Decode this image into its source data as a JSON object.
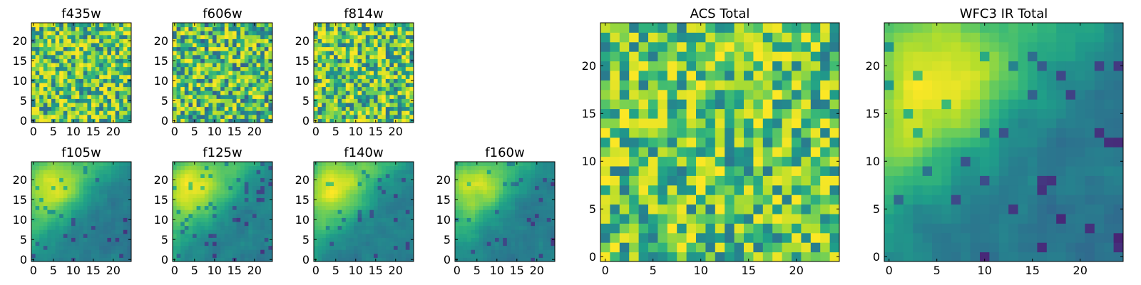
{
  "chart_data": [
    {
      "type": "heatmap",
      "title": "f435w",
      "x_ticks": [
        "0",
        "5",
        "10",
        "15",
        "20"
      ],
      "y_ticks": [
        "0",
        "5",
        "10",
        "15",
        "20"
      ],
      "xlim": [
        0,
        24
      ],
      "ylim": [
        0,
        24
      ],
      "grid_size": 25,
      "pattern": "noise",
      "seed": 11,
      "colormap": "viridis",
      "range": [
        0.35,
        1.0
      ]
    },
    {
      "type": "heatmap",
      "title": "f606w",
      "x_ticks": [
        "0",
        "5",
        "10",
        "15",
        "20"
      ],
      "y_ticks": [
        "0",
        "5",
        "10",
        "15",
        "20"
      ],
      "xlim": [
        0,
        24
      ],
      "ylim": [
        0,
        24
      ],
      "grid_size": 25,
      "pattern": "noise",
      "seed": 23,
      "colormap": "viridis",
      "range": [
        0.3,
        1.0
      ]
    },
    {
      "type": "heatmap",
      "title": "f814w",
      "x_ticks": [
        "0",
        "5",
        "10",
        "15",
        "20"
      ],
      "y_ticks": [
        "0",
        "5",
        "10",
        "15",
        "20"
      ],
      "xlim": [
        0,
        24
      ],
      "ylim": [
        0,
        24
      ],
      "grid_size": 25,
      "pattern": "noise",
      "seed": 37,
      "colormap": "viridis",
      "range": [
        0.35,
        1.0
      ]
    },
    {
      "type": "heatmap",
      "title": "f105w",
      "x_ticks": [
        "0",
        "5",
        "10",
        "15",
        "20"
      ],
      "y_ticks": [
        "0",
        "5",
        "10",
        "15",
        "20"
      ],
      "xlim": [
        0,
        24
      ],
      "ylim": [
        0,
        24
      ],
      "grid_size": 25,
      "pattern": "smooth",
      "seed": 41,
      "colormap": "viridis",
      "range": [
        0.15,
        0.95
      ]
    },
    {
      "type": "heatmap",
      "title": "f125w",
      "x_ticks": [
        "0",
        "5",
        "10",
        "15",
        "20"
      ],
      "y_ticks": [
        "0",
        "5",
        "10",
        "15",
        "20"
      ],
      "xlim": [
        0,
        24
      ],
      "ylim": [
        0,
        24
      ],
      "grid_size": 25,
      "pattern": "smooth",
      "seed": 53,
      "colormap": "viridis",
      "range": [
        0.15,
        1.0
      ]
    },
    {
      "type": "heatmap",
      "title": "f140w",
      "x_ticks": [
        "0",
        "5",
        "10",
        "15",
        "20"
      ],
      "y_ticks": [
        "0",
        "5",
        "10",
        "15",
        "20"
      ],
      "xlim": [
        0,
        24
      ],
      "ylim": [
        0,
        24
      ],
      "grid_size": 25,
      "pattern": "smooth",
      "seed": 67,
      "colormap": "viridis",
      "range": [
        0.2,
        1.0
      ]
    },
    {
      "type": "heatmap",
      "title": "f160w",
      "x_ticks": [
        "0",
        "5",
        "10",
        "15",
        "20"
      ],
      "y_ticks": [
        "0",
        "5",
        "10",
        "15",
        "20"
      ],
      "xlim": [
        0,
        24
      ],
      "ylim": [
        0,
        24
      ],
      "grid_size": 25,
      "pattern": "smooth",
      "seed": 79,
      "colormap": "viridis",
      "range": [
        0.15,
        0.95
      ]
    },
    {
      "type": "heatmap",
      "title": "ACS Total",
      "x_ticks": [
        "0",
        "5",
        "10",
        "15",
        "20"
      ],
      "y_ticks": [
        "0",
        "5",
        "10",
        "15",
        "20"
      ],
      "xlim": [
        0,
        24
      ],
      "ylim": [
        0,
        24
      ],
      "grid_size": 25,
      "pattern": "noise",
      "seed": 97,
      "colormap": "viridis",
      "range": [
        0.4,
        1.0
      ]
    },
    {
      "type": "heatmap",
      "title": "WFC3 IR Total",
      "x_ticks": [
        "0",
        "5",
        "10",
        "15",
        "20"
      ],
      "y_ticks": [
        "0",
        "5",
        "10",
        "15",
        "20"
      ],
      "xlim": [
        0,
        24
      ],
      "ylim": [
        0,
        24
      ],
      "grid_size": 25,
      "pattern": "smooth",
      "seed": 103,
      "colormap": "viridis",
      "range": [
        0.1,
        1.0
      ]
    }
  ]
}
